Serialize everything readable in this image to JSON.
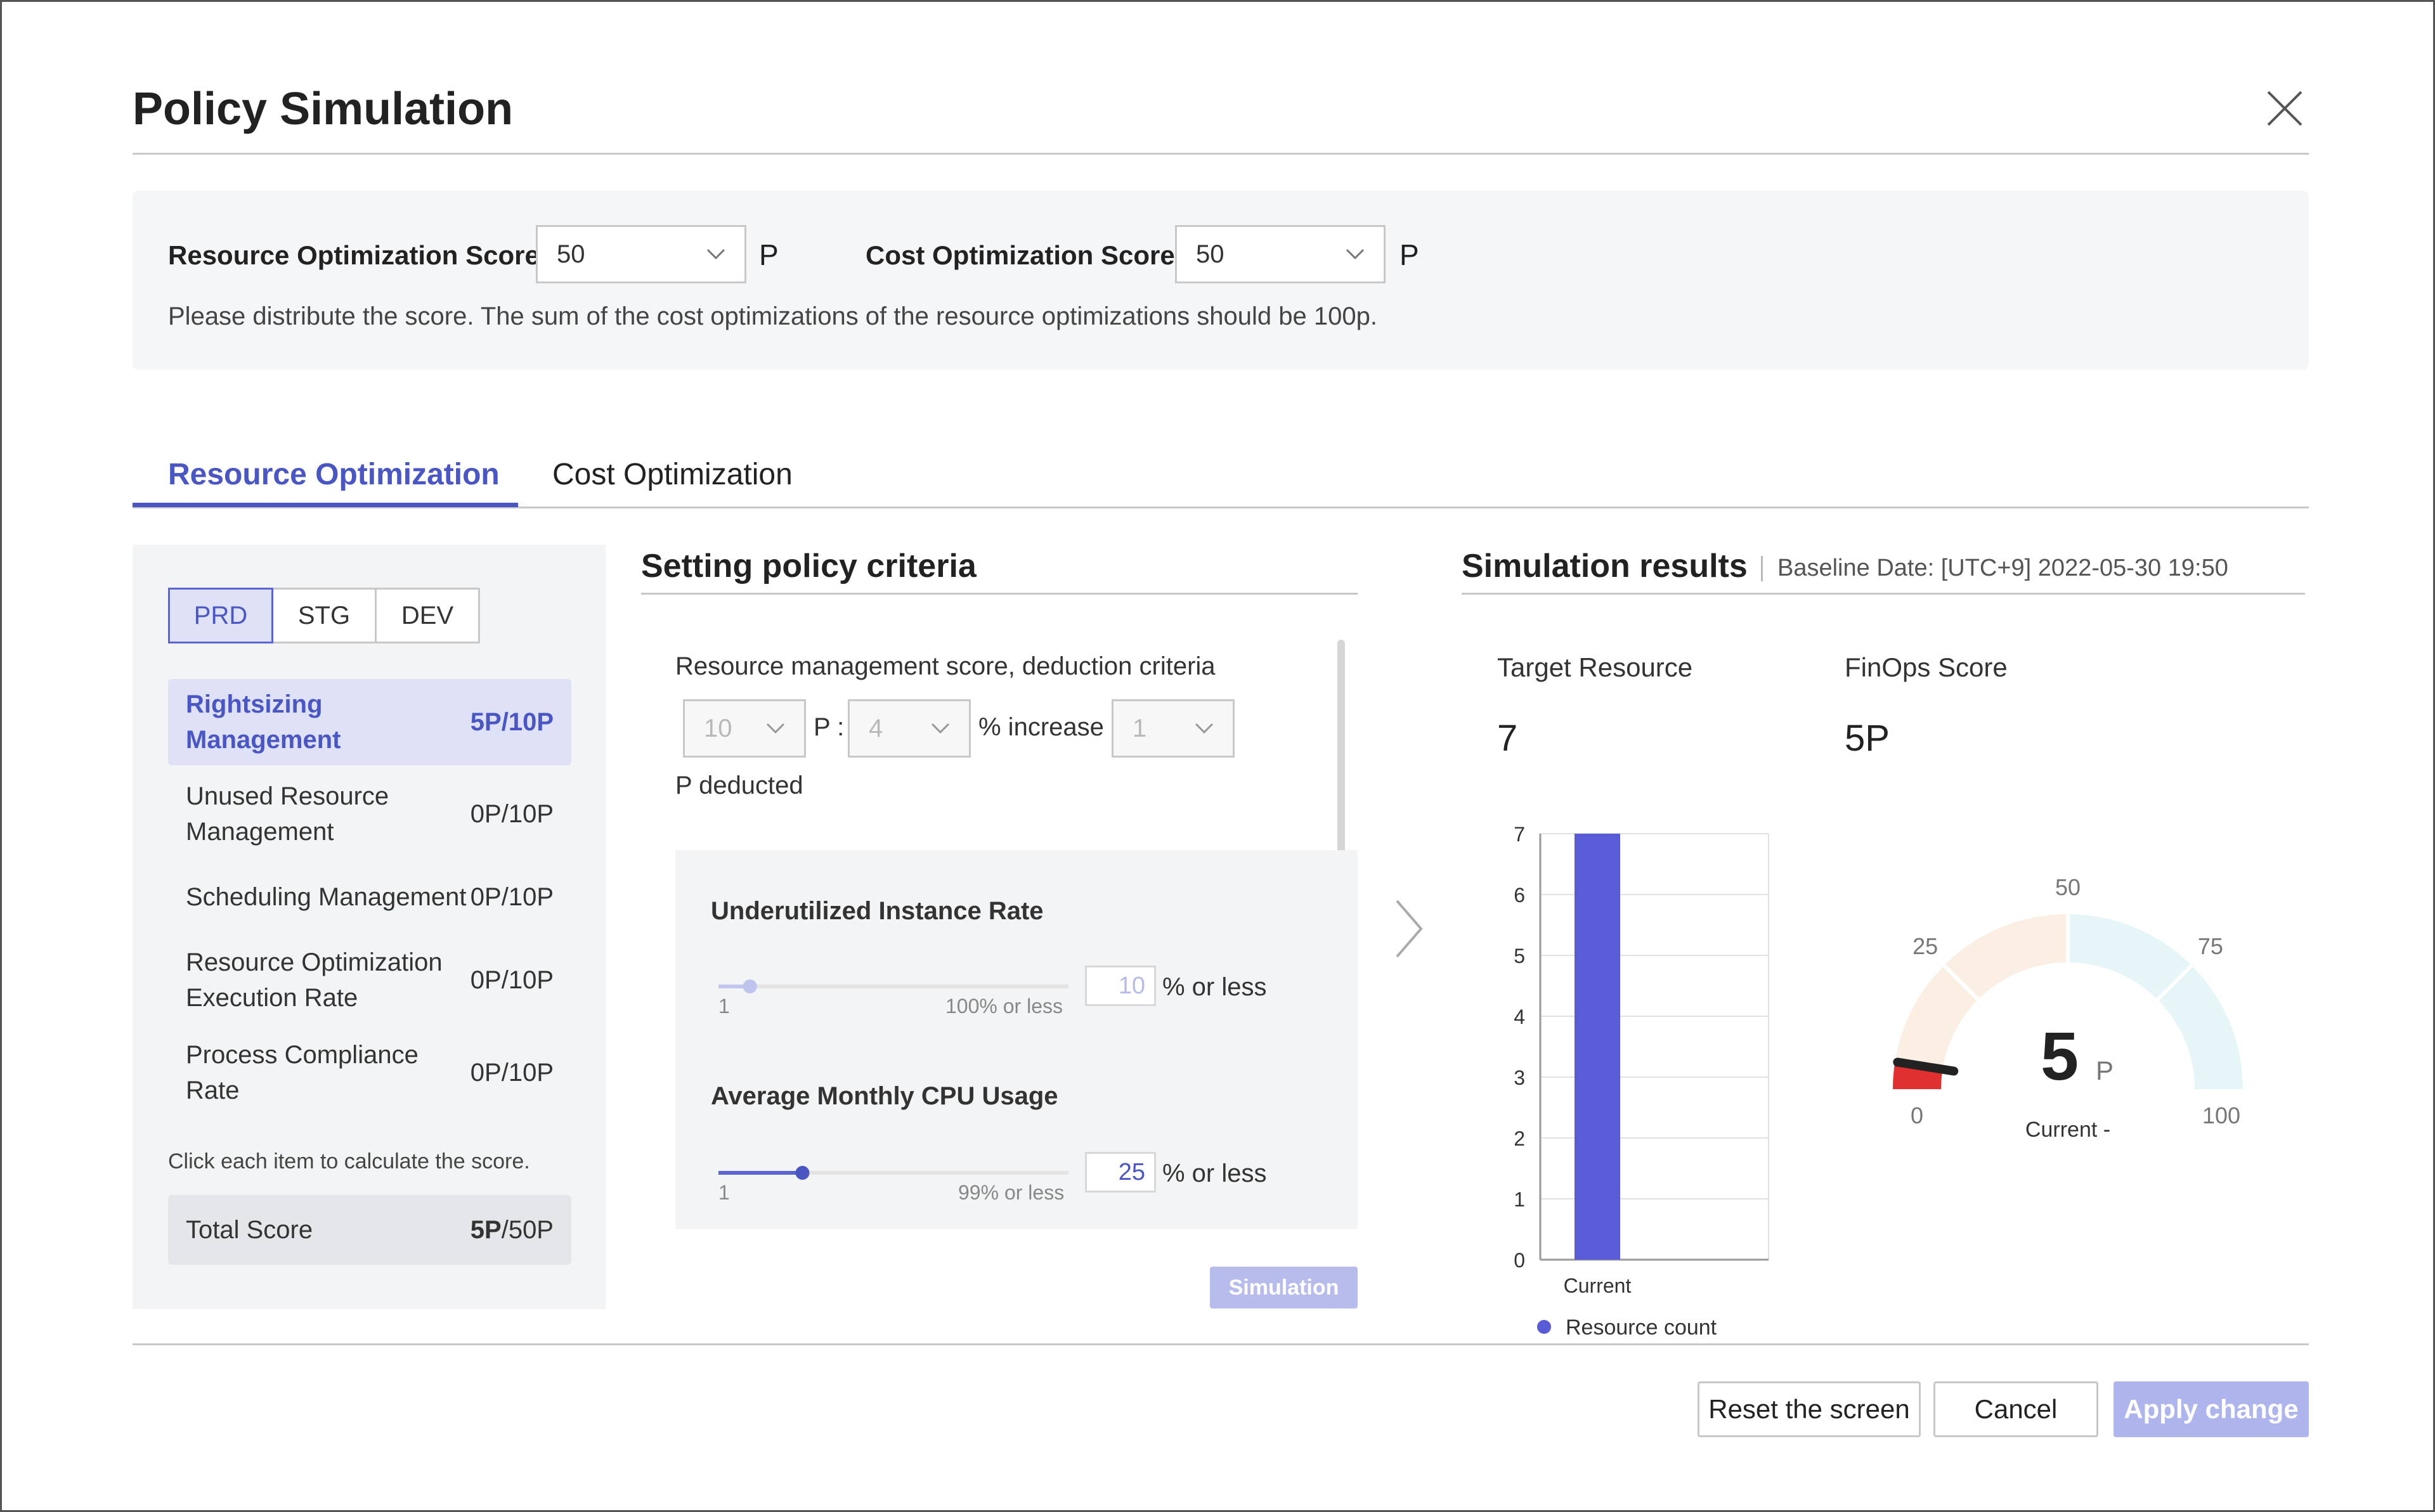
{
  "dialog": {
    "title": "Policy Simulation"
  },
  "scores": {
    "resource_label": "Resource Optimization Score",
    "resource_value": "50",
    "cost_label": "Cost Optimization Score",
    "cost_value": "50",
    "unit": "P",
    "note": "Please distribute the score. The sum of the cost optimizations of the resource optimizations should be 100p."
  },
  "tabs": [
    {
      "label": "Resource Optimization",
      "active": true
    },
    {
      "label": "Cost Optimization",
      "active": false
    }
  ],
  "environments": [
    {
      "label": "PRD",
      "active": true
    },
    {
      "label": "STG",
      "active": false
    },
    {
      "label": "DEV",
      "active": false
    }
  ],
  "criteria": [
    {
      "name": "Rightsizing Management",
      "score": "5P/10P",
      "active": true
    },
    {
      "name": "Unused Resource Management",
      "score": "0P/10P",
      "active": false
    },
    {
      "name": "Scheduling Management",
      "score": "0P/10P",
      "active": false
    },
    {
      "name": "Resource Optimization Execution Rate",
      "score": "0P/10P",
      "active": false
    },
    {
      "name": "Process Compliance Rate",
      "score": "0P/10P",
      "active": false
    }
  ],
  "left_hint": "Click each item to calculate the score.",
  "total": {
    "label": "Total Score",
    "value": "5P",
    "max": "/50P"
  },
  "policy": {
    "title": "Setting policy criteria",
    "deduction_label": "Resource management score, deduction criteria",
    "sel1": "10",
    "p_colon": "P :",
    "sel2": "4",
    "increase_label": "% increase",
    "sel3": "1",
    "deducted_label": "P deducted",
    "metrics": [
      {
        "title": "Underutilized Instance Rate",
        "min": "1",
        "max_label": "100% or less",
        "value": "10",
        "suffix": "% or less",
        "level": 0.09
      },
      {
        "title": "Average Monthly CPU Usage",
        "min": "1",
        "max_label": "99% or less",
        "value": "25",
        "suffix": "% or less",
        "level": 0.24
      }
    ],
    "simulation_button": "Simulation"
  },
  "results": {
    "title": "Simulation results",
    "baseline": "Baseline Date: [UTC+9] 2022-05-30 19:50",
    "target_label": "Target Resource",
    "target_value": "7",
    "finops_label": "FinOps Score",
    "finops_value": "5",
    "finops_unit": "P"
  },
  "chart_data": [
    {
      "type": "bar",
      "categories": [
        "Current"
      ],
      "series": [
        {
          "name": "Resource count",
          "values": [
            7
          ]
        }
      ],
      "yticks": [
        "0",
        "1",
        "2",
        "3",
        "4",
        "5",
        "6",
        "7"
      ],
      "ylim": [
        0,
        7
      ],
      "grid": true,
      "legend": "bottom",
      "colors": {
        "bar": "#5a5bd6"
      }
    },
    {
      "type": "gauge",
      "value": 5,
      "range": [
        0,
        100
      ],
      "ticks": [
        "0",
        "25",
        "50",
        "75",
        "100"
      ],
      "center_value": "5",
      "center_unit": "P",
      "caption": "Current -",
      "colors": {
        "fill": "#e03030",
        "band_low": "#fbeee2",
        "band_high": "#e6f5f7",
        "needle": "#222222"
      }
    }
  ],
  "footer": {
    "reset": "Reset the screen",
    "cancel": "Cancel",
    "apply": "Apply change"
  }
}
